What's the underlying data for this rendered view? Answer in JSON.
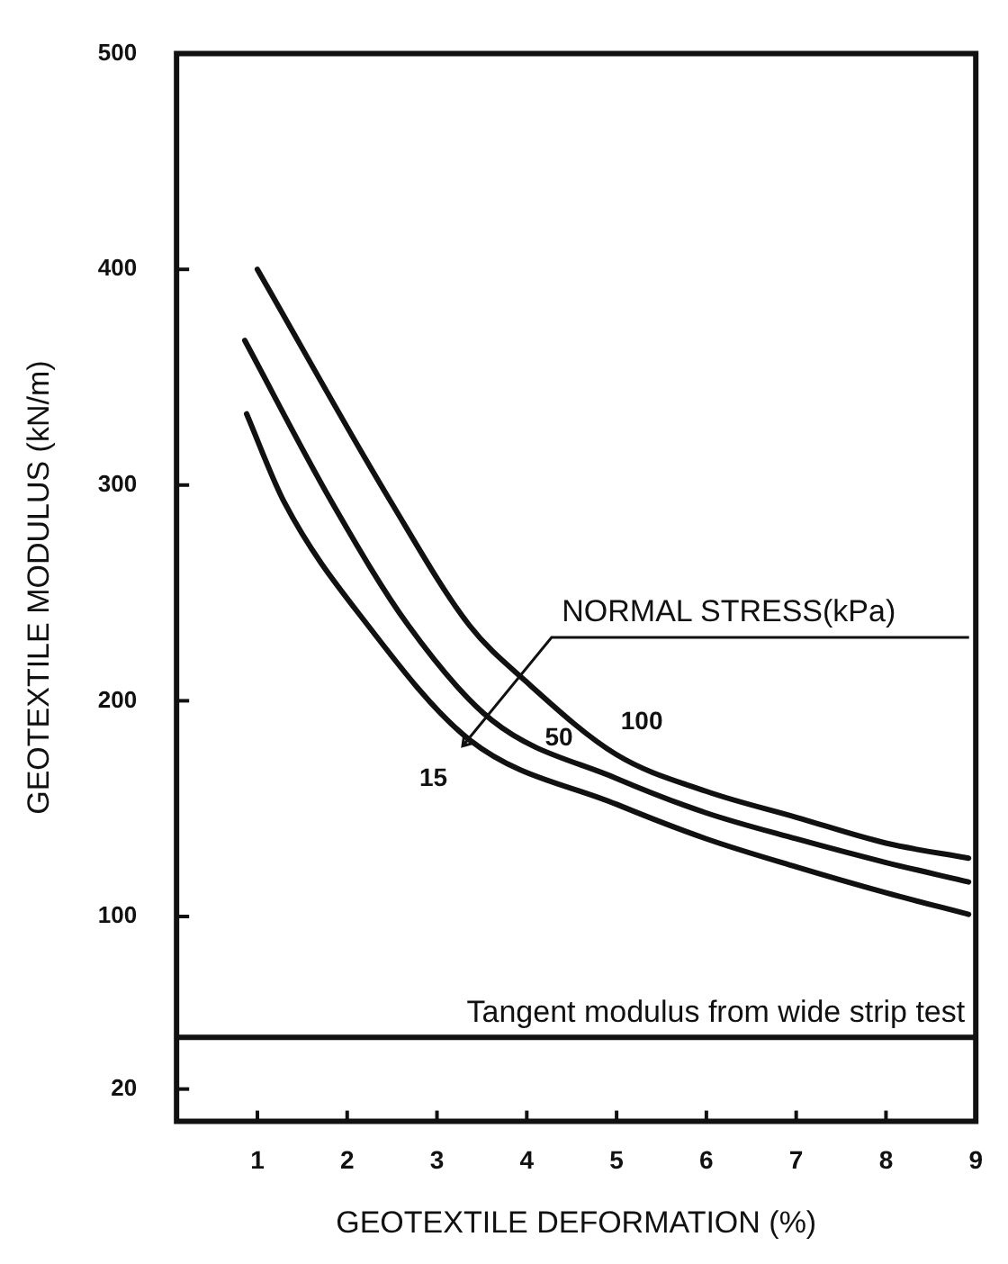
{
  "chart_data": {
    "type": "line",
    "xlabel": "GEOTEXTILE DEFORMATION (%)",
    "ylabel": "GEOTEXTILE MODULUS (kN/m)",
    "xlim": [
      0.1,
      9
    ],
    "xticks": [
      1,
      2,
      3,
      4,
      5,
      6,
      7,
      8,
      9
    ],
    "ylim": [
      5,
      500
    ],
    "yticks": [
      20,
      100,
      200,
      300,
      400,
      500
    ],
    "grid": false,
    "legend": false,
    "marker": "none",
    "line_style": "solid",
    "series": [
      {
        "name": "100",
        "color": "#111111",
        "x": [
          1,
          2.49,
          3.36,
          3.99,
          5,
          6,
          7,
          8,
          8.92
        ],
        "values": [
          400,
          292,
          235,
          209,
          175,
          158,
          146,
          134,
          127
        ]
      },
      {
        "name": "50",
        "color": "#111111",
        "x": [
          0.86,
          1.83,
          2.68,
          3.61,
          5,
          6,
          7,
          8,
          8.92
        ],
        "values": [
          367,
          292,
          235,
          191,
          164,
          148,
          136,
          125,
          116
        ]
      },
      {
        "name": "15",
        "color": "#111111",
        "x": [
          0.88,
          1.3,
          2.23,
          3.36,
          5,
          6,
          7,
          8,
          8.92
        ],
        "values": [
          333,
          292,
          235,
          182,
          152,
          136,
          123,
          111,
          101
        ]
      }
    ],
    "ref_lines": [
      {
        "axis": "y",
        "value": 44,
        "label": "Tangent modulus from wide strip test",
        "color": "#111111"
      }
    ],
    "annotations": [
      "NORMAL STRESS(kPa)"
    ]
  }
}
